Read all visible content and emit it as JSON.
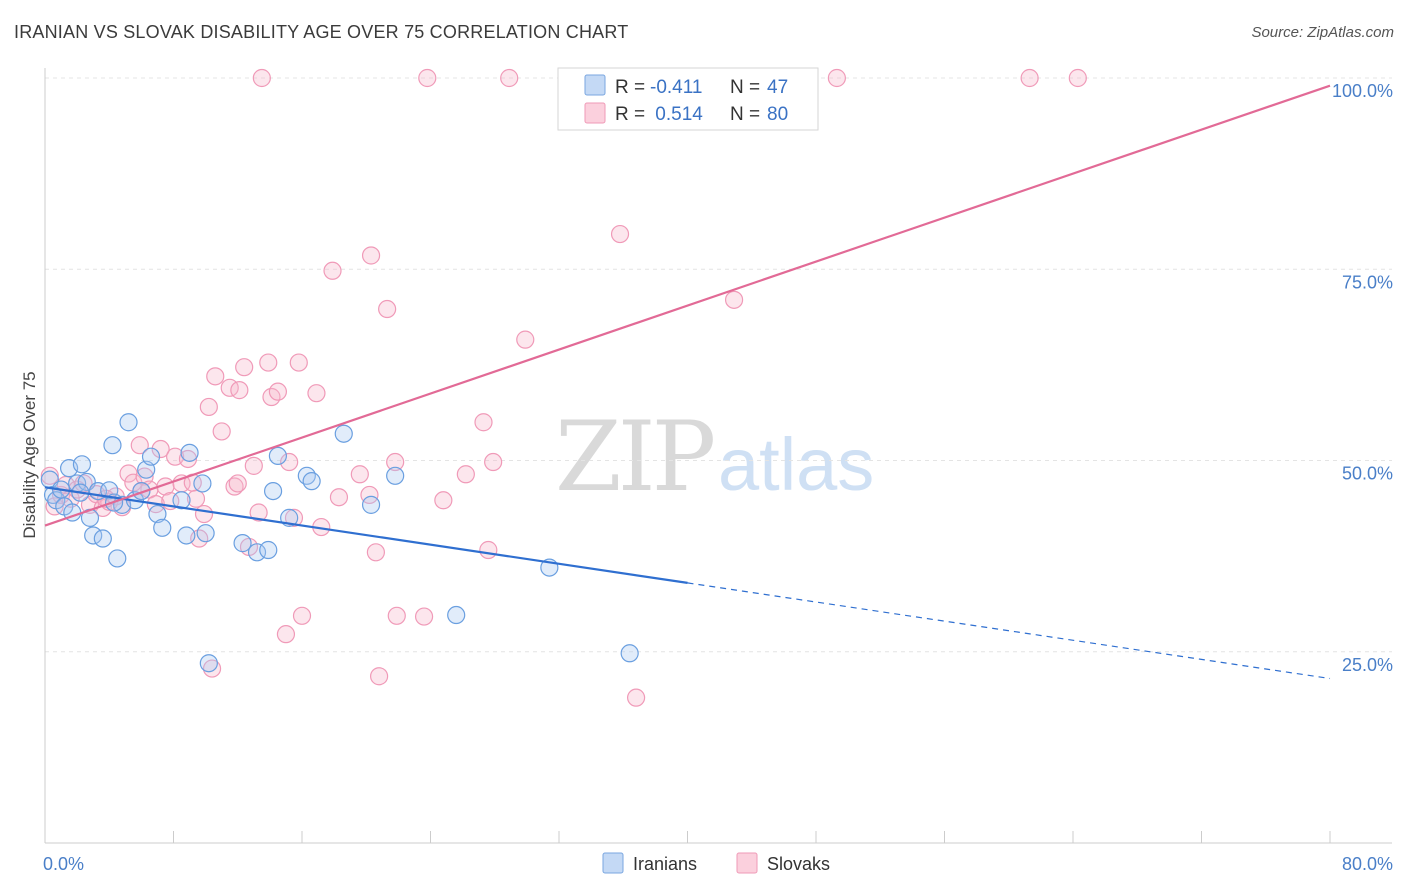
{
  "title": "IRANIAN VS SLOVAK DISABILITY AGE OVER 75 CORRELATION CHART",
  "source": "Source: ZipAtlas.com",
  "watermark": {
    "zip": "ZIP",
    "atlas": "atlas"
  },
  "legend_box": {
    "rows": [
      {
        "r_label": "R =",
        "r_value": "-0.411",
        "n_label": "N =",
        "n_value": "47",
        "color": "#aac8f0"
      },
      {
        "r_label": "R =",
        "r_value": " 0.514",
        "n_label": "N =",
        "n_value": "80",
        "color": "#f6b6cb"
      }
    ]
  },
  "colors": {
    "iranians": "#6a9fe0",
    "slovaks": "#f08fb0",
    "iranians_line": "#2f6fd0",
    "slovaks_line": "#e26a96",
    "tick": "#4a7fc8"
  },
  "chart_data": {
    "type": "scatter",
    "title": "IRANIAN VS SLOVAK DISABILITY AGE OVER 75 CORRELATION CHART",
    "xlabel": "",
    "ylabel": "Disability Age Over 75",
    "xlim": [
      0,
      80
    ],
    "ylim": [
      0,
      100
    ],
    "x_tick_labels": [
      "0.0%",
      "80.0%"
    ],
    "y_ticks": [
      25,
      50,
      75,
      100
    ],
    "y_tick_labels": [
      "25.0%",
      "50.0%",
      "75.0%",
      "100.0%"
    ],
    "grid": true,
    "legend": "bottom",
    "series": [
      {
        "name": "Iranians",
        "R": -0.411,
        "N": 47,
        "trend": {
          "x0": 0,
          "y0": 46.5,
          "x1": 40,
          "y1": 34.0,
          "dashed_to_x": 80,
          "dashed_to_y": 21.5
        },
        "points": [
          [
            0.3,
            47.5
          ],
          [
            0.5,
            45.5
          ],
          [
            0.7,
            44.8
          ],
          [
            1.0,
            46.2
          ],
          [
            1.2,
            44.0
          ],
          [
            1.5,
            49.0
          ],
          [
            1.7,
            43.2
          ],
          [
            2.0,
            47.0
          ],
          [
            2.3,
            49.5
          ],
          [
            2.6,
            47.2
          ],
          [
            2.8,
            42.5
          ],
          [
            3.0,
            40.2
          ],
          [
            3.3,
            46.0
          ],
          [
            3.6,
            39.8
          ],
          [
            4.0,
            46.1
          ],
          [
            4.2,
            52.0
          ],
          [
            4.5,
            37.2
          ],
          [
            4.8,
            44.2
          ],
          [
            5.2,
            55.0
          ],
          [
            5.6,
            44.8
          ],
          [
            6.0,
            46.0
          ],
          [
            6.3,
            48.8
          ],
          [
            6.6,
            50.5
          ],
          [
            7.0,
            43.0
          ],
          [
            7.3,
            41.2
          ],
          [
            8.5,
            44.8
          ],
          [
            8.8,
            40.2
          ],
          [
            9.0,
            51.0
          ],
          [
            9.8,
            47.0
          ],
          [
            10.0,
            40.5
          ],
          [
            10.2,
            23.5
          ],
          [
            12.3,
            39.2
          ],
          [
            13.2,
            38.0
          ],
          [
            13.9,
            38.3
          ],
          [
            14.2,
            46.0
          ],
          [
            14.5,
            50.6
          ],
          [
            15.2,
            42.5
          ],
          [
            16.3,
            48.0
          ],
          [
            16.6,
            47.3
          ],
          [
            18.6,
            53.5
          ],
          [
            20.3,
            44.2
          ],
          [
            21.8,
            48.0
          ],
          [
            25.6,
            29.8
          ],
          [
            31.4,
            36.0
          ],
          [
            36.4,
            24.8
          ],
          [
            4.3,
            44.5
          ],
          [
            2.2,
            45.8
          ]
        ]
      },
      {
        "name": "Slovaks",
        "R": 0.514,
        "N": 80,
        "trend": {
          "x0": 0,
          "y0": 41.5,
          "x1": 80,
          "y1": 99.0
        },
        "points": [
          [
            0.3,
            48.0
          ],
          [
            0.6,
            44.0
          ],
          [
            1.0,
            45.5
          ],
          [
            1.3,
            46.8
          ],
          [
            1.6,
            45.0
          ],
          [
            2.0,
            46.2
          ],
          [
            2.4,
            47.0
          ],
          [
            2.8,
            44.2
          ],
          [
            3.2,
            45.6
          ],
          [
            3.6,
            43.8
          ],
          [
            4.0,
            44.6
          ],
          [
            4.4,
            45.3
          ],
          [
            4.8,
            43.9
          ],
          [
            5.2,
            48.3
          ],
          [
            5.5,
            47.1
          ],
          [
            5.9,
            52.0
          ],
          [
            6.2,
            47.9
          ],
          [
            6.5,
            46.2
          ],
          [
            6.9,
            44.3
          ],
          [
            7.2,
            51.5
          ],
          [
            7.5,
            46.6
          ],
          [
            7.8,
            44.7
          ],
          [
            8.1,
            50.5
          ],
          [
            8.5,
            47.0
          ],
          [
            8.9,
            50.2
          ],
          [
            9.2,
            47.1
          ],
          [
            9.6,
            39.8
          ],
          [
            9.9,
            43.0
          ],
          [
            10.2,
            57.0
          ],
          [
            10.4,
            22.8
          ],
          [
            10.6,
            61.0
          ],
          [
            11.0,
            53.8
          ],
          [
            11.5,
            59.5
          ],
          [
            11.8,
            46.6
          ],
          [
            12.1,
            59.2
          ],
          [
            12.4,
            62.2
          ],
          [
            12.7,
            38.7
          ],
          [
            13.0,
            49.3
          ],
          [
            13.3,
            43.2
          ],
          [
            13.5,
            100.0
          ],
          [
            13.9,
            62.8
          ],
          [
            14.1,
            58.3
          ],
          [
            14.5,
            59.0
          ],
          [
            15.0,
            27.3
          ],
          [
            15.2,
            49.8
          ],
          [
            15.5,
            42.5
          ],
          [
            15.8,
            62.8
          ],
          [
            16.0,
            29.7
          ],
          [
            16.9,
            58.8
          ],
          [
            17.2,
            41.3
          ],
          [
            17.9,
            74.8
          ],
          [
            18.3,
            45.2
          ],
          [
            19.6,
            48.2
          ],
          [
            20.2,
            45.5
          ],
          [
            20.3,
            76.8
          ],
          [
            20.6,
            38.0
          ],
          [
            20.8,
            21.8
          ],
          [
            21.3,
            69.8
          ],
          [
            21.8,
            49.8
          ],
          [
            21.9,
            29.7
          ],
          [
            23.6,
            29.6
          ],
          [
            23.8,
            100.0
          ],
          [
            24.8,
            44.8
          ],
          [
            26.2,
            48.2
          ],
          [
            27.3,
            55.0
          ],
          [
            27.6,
            38.3
          ],
          [
            27.9,
            49.8
          ],
          [
            28.9,
            100.0
          ],
          [
            29.9,
            65.8
          ],
          [
            35.8,
            79.6
          ],
          [
            36.8,
            19.0
          ],
          [
            42.9,
            71.0
          ],
          [
            49.3,
            100.0
          ],
          [
            61.3,
            100.0
          ],
          [
            64.3,
            100.0
          ],
          [
            37.5,
            100.0
          ],
          [
            3.8,
            45.0
          ],
          [
            6.0,
            46.0
          ],
          [
            9.4,
            45.0
          ],
          [
            12.0,
            47.0
          ]
        ]
      }
    ]
  }
}
